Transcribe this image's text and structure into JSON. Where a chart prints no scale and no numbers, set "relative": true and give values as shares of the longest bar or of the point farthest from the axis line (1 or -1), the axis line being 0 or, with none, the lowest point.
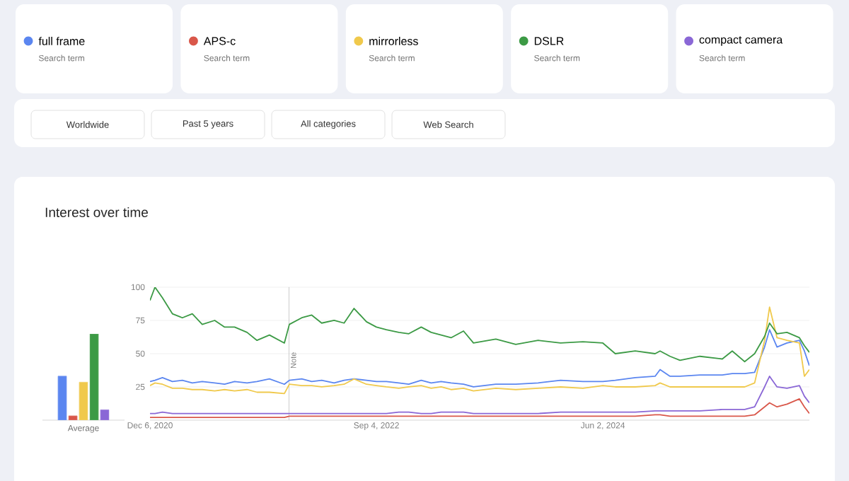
{
  "chart_data": [
    {
      "type": "bar",
      "relative": true,
      "categories": [
        "Average"
      ],
      "series": [
        {
          "color": "#5b86f0",
          "values": [
            0.51
          ]
        },
        {
          "color": "#d9574a",
          "values": [
            0.05
          ]
        },
        {
          "color": "#f0c94c",
          "values": [
            0.44
          ]
        },
        {
          "color": "#3c9a45",
          "values": [
            1
          ]
        },
        {
          "color": "#8a67d6",
          "values": [
            0.12
          ]
        }
      ]
    },
    {
      "type": "line",
      "title": "Interest over time",
      "legend": "top",
      "grid": "y",
      "x": [
        "2020-12-06",
        "2020-12-20",
        "2021-01-10",
        "2021-02-07",
        "2021-03-07",
        "2021-04-04",
        "2021-05-02",
        "2021-06-06",
        "2021-07-04",
        "2021-08-01",
        "2021-09-05",
        "2021-10-03",
        "2021-11-07",
        "2021-12-19",
        "2022-01-02",
        "2022-02-06",
        "2022-03-06",
        "2022-04-03",
        "2022-05-08",
        "2022-06-05",
        "2022-07-03",
        "2022-08-07",
        "2022-09-04",
        "2022-10-02",
        "2022-11-06",
        "2022-12-04",
        "2023-01-08",
        "2023-02-05",
        "2023-03-05",
        "2023-04-02",
        "2023-05-07",
        "2023-06-04",
        "2023-08-06",
        "2023-10-01",
        "2023-12-03",
        "2024-02-04",
        "2024-04-07",
        "2024-06-02",
        "2024-07-07",
        "2024-09-01",
        "2024-10-27",
        "2024-11-10",
        "2024-12-08",
        "2025-01-05",
        "2025-03-02",
        "2025-05-04",
        "2025-06-01",
        "2025-07-06",
        "2025-08-03",
        "2025-08-31",
        "2025-09-14",
        "2025-10-05",
        "2025-11-02",
        "2025-12-07",
        "2025-12-21",
        "2026-01-04"
      ],
      "xlim": [
        "2020-12-06",
        "2026-01-04"
      ],
      "xticks": [
        {
          "value": "2020-12-06",
          "label": "Dec 6, 2020"
        },
        {
          "value": "2022-09-04",
          "label": "Sep 4, 2022"
        },
        {
          "value": "2024-06-02",
          "label": "Jun 2, 2024"
        }
      ],
      "ylim": [
        0,
        100
      ],
      "yticks": [
        25,
        50,
        75,
        100
      ],
      "ref_lines": [
        {
          "axis": "x",
          "value": "2022-01-01",
          "label": "Note"
        }
      ],
      "series": [
        {
          "name": "full frame",
          "color": "#5b86f0",
          "values": [
            29,
            30,
            32,
            29,
            30,
            28,
            29,
            28,
            27,
            29,
            28,
            29,
            31,
            27,
            30,
            31,
            29,
            30,
            28,
            30,
            31,
            30,
            29,
            29,
            28,
            27,
            30,
            28,
            29,
            28,
            27,
            25,
            27,
            27,
            28,
            30,
            29,
            29,
            30,
            32,
            33,
            38,
            33,
            33,
            34,
            34,
            35,
            35,
            36,
            55,
            68,
            55,
            58,
            60,
            52,
            41
          ]
        },
        {
          "name": "APS-c",
          "color": "#d9574a",
          "values": [
            2,
            2,
            2,
            2,
            2,
            2,
            2,
            2,
            2,
            2,
            2,
            2,
            2,
            2,
            3,
            3,
            3,
            3,
            3,
            3,
            3,
            3,
            3,
            3,
            3,
            3,
            3,
            3,
            3,
            3,
            3,
            3,
            3,
            3,
            3,
            3,
            3,
            3,
            3,
            3,
            4,
            4,
            3,
            3,
            3,
            3,
            3,
            3,
            4,
            10,
            13,
            10,
            12,
            16,
            10,
            5
          ]
        },
        {
          "name": "mirrorless",
          "color": "#f0c94c",
          "values": [
            26,
            28,
            27,
            24,
            24,
            23,
            23,
            22,
            23,
            22,
            23,
            21,
            21,
            20,
            27,
            26,
            26,
            25,
            26,
            27,
            31,
            27,
            26,
            25,
            24,
            25,
            26,
            24,
            25,
            23,
            24,
            22,
            24,
            23,
            24,
            25,
            24,
            26,
            25,
            25,
            26,
            28,
            25,
            25,
            25,
            25,
            25,
            25,
            28,
            60,
            85,
            62,
            60,
            58,
            33,
            38
          ]
        },
        {
          "name": "DSLR",
          "color": "#3c9a45",
          "values": [
            90,
            100,
            92,
            80,
            77,
            80,
            72,
            75,
            70,
            70,
            66,
            60,
            64,
            58,
            72,
            77,
            79,
            73,
            75,
            73,
            84,
            74,
            70,
            68,
            66,
            65,
            70,
            66,
            64,
            62,
            67,
            58,
            61,
            57,
            60,
            58,
            59,
            58,
            50,
            52,
            50,
            52,
            48,
            45,
            48,
            46,
            52,
            44,
            50,
            63,
            73,
            65,
            66,
            62,
            56,
            51
          ]
        },
        {
          "name": "compact camera",
          "color": "#8a67d6",
          "values": [
            5,
            5,
            6,
            5,
            5,
            5,
            5,
            5,
            5,
            5,
            5,
            5,
            5,
            5,
            5,
            5,
            5,
            5,
            5,
            5,
            5,
            5,
            5,
            5,
            6,
            6,
            5,
            5,
            6,
            6,
            6,
            5,
            5,
            5,
            5,
            6,
            6,
            6,
            6,
            6,
            7,
            7,
            7,
            7,
            7,
            8,
            8,
            8,
            10,
            25,
            33,
            25,
            24,
            26,
            18,
            13
          ]
        }
      ],
      "annotations": [
        "Search term",
        "Search term",
        "Search term",
        "Search term",
        "Search term",
        "Worldwide",
        "Past 5 years",
        "All categories",
        "Web Search"
      ]
    }
  ]
}
